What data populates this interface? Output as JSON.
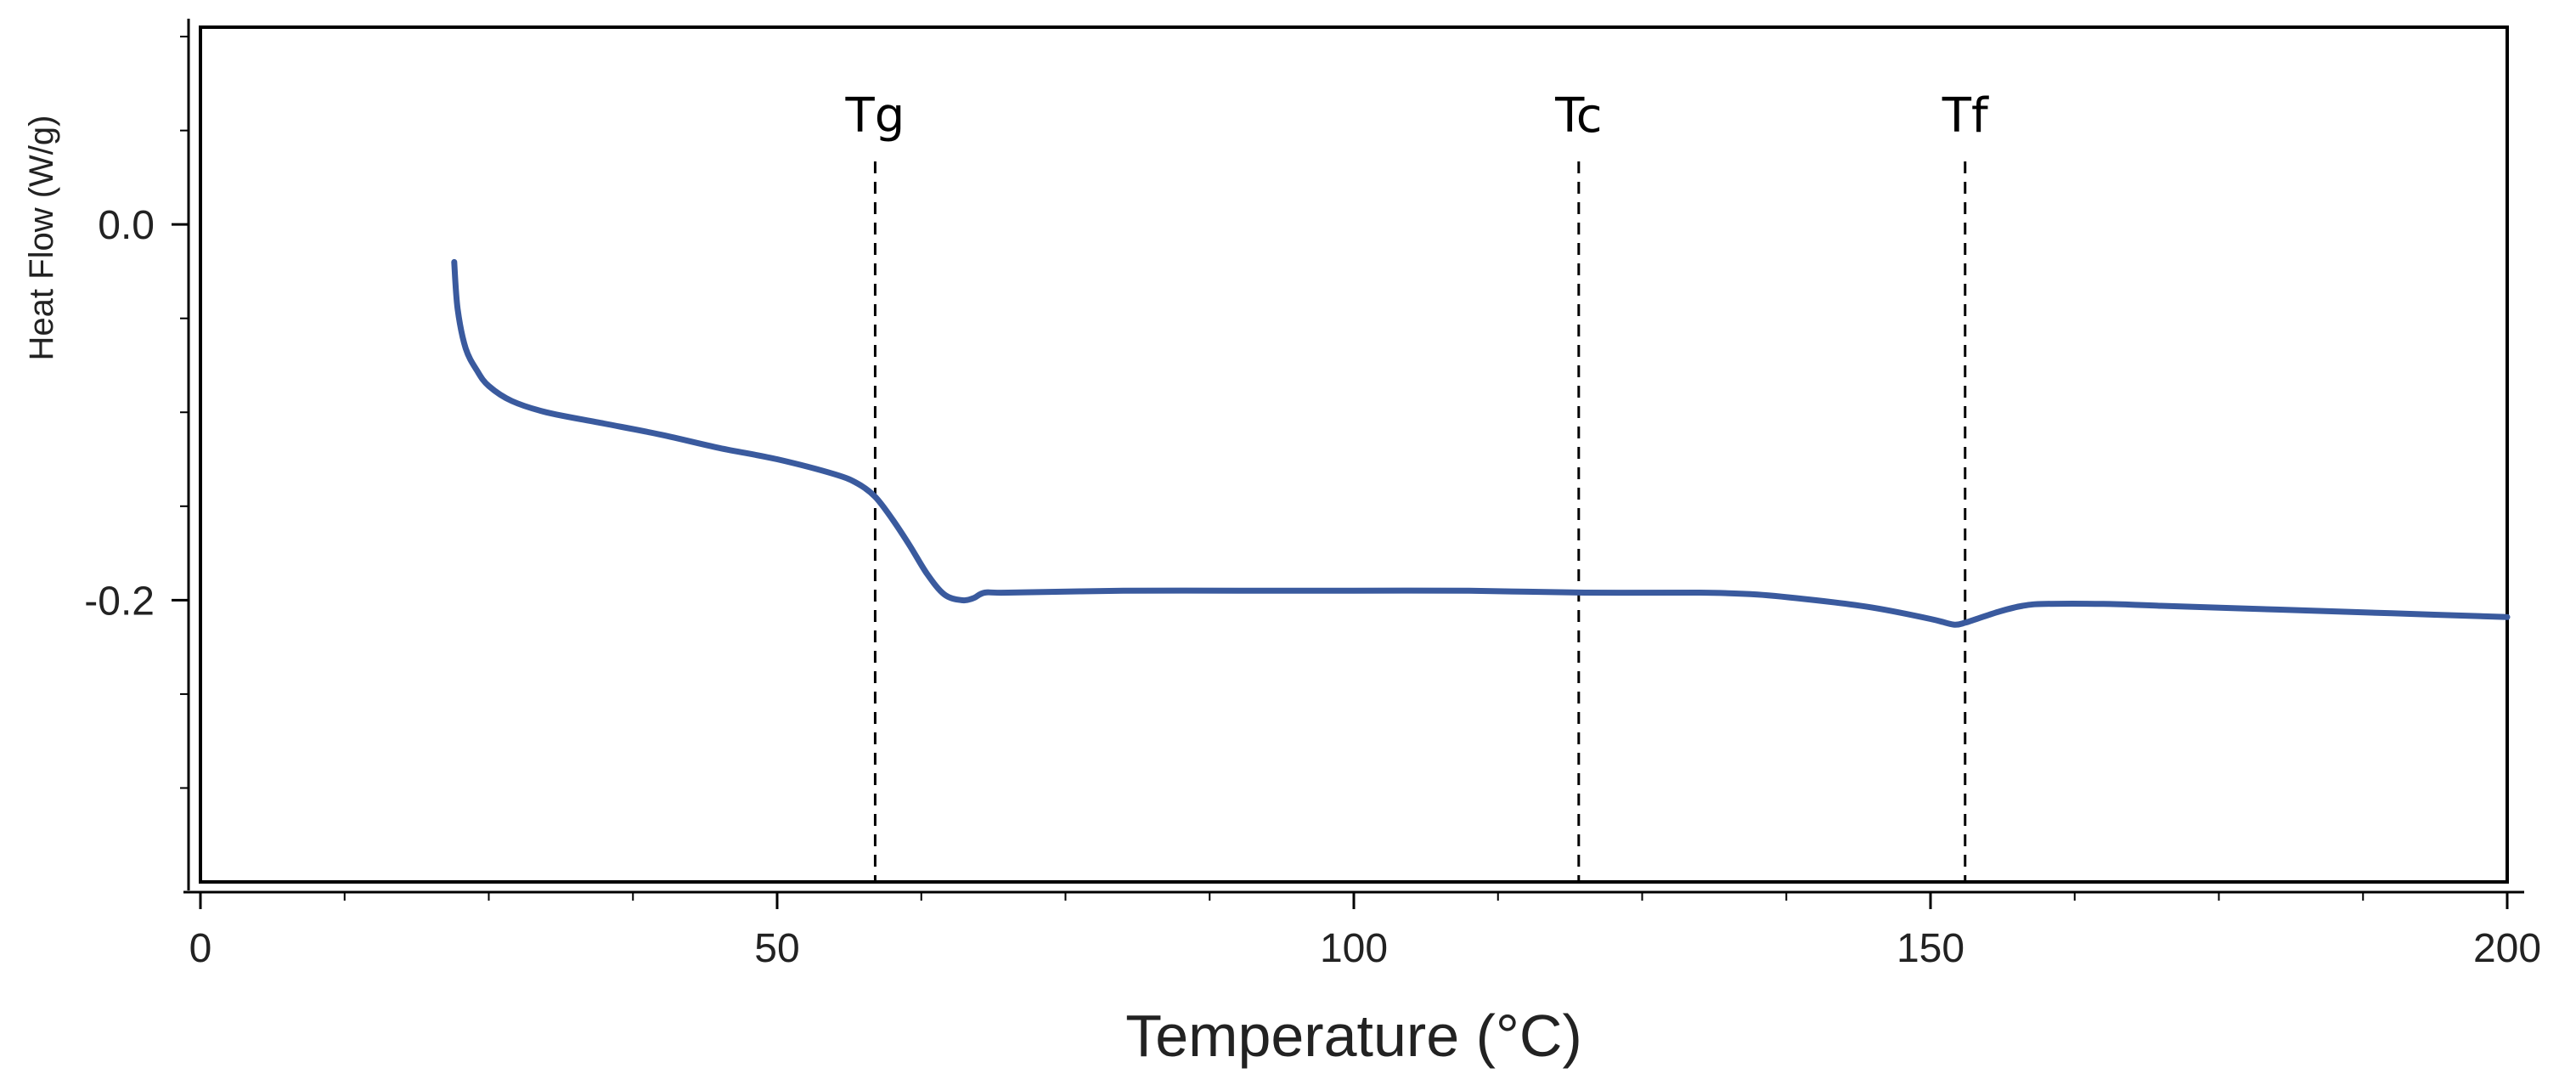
{
  "chart_data": {
    "type": "line",
    "title": "",
    "xlabel": "Temperature (°C)",
    "ylabel": "Heat Flow (W/g)",
    "xlim": [
      0,
      200
    ],
    "ylim": [
      -0.35,
      0.105
    ],
    "x_major_ticks": [
      0,
      50,
      100,
      150,
      200
    ],
    "x_tick_labels": [
      "0",
      "50",
      "100",
      "150",
      "200"
    ],
    "x_minor_step": 12.5,
    "y_major_ticks": [
      0.0,
      -0.2
    ],
    "y_tick_labels": [
      "0.0",
      "-0.2"
    ],
    "y_minor_step": 0.05,
    "grid": false,
    "series": [
      {
        "name": "Heat Flow",
        "color": "#3a5a9e",
        "x": [
          22.0,
          22.3,
          23.0,
          24.0,
          25.0,
          27.0,
          30.0,
          35.0,
          40.0,
          45.0,
          50.0,
          55.0,
          57.0,
          58.5,
          60.0,
          61.5,
          63.0,
          64.5,
          66.0,
          67.0,
          68.0,
          70.0,
          80.0,
          90.0,
          100.0,
          110.0,
          120.0,
          130.0,
          135.0,
          140.0,
          145.0,
          150.0,
          152.0,
          153.0,
          154.0,
          156.0,
          158.0,
          160.0,
          165.0,
          170.0,
          180.0,
          190.0,
          200.0
        ],
        "y": [
          -0.02,
          -0.045,
          -0.066,
          -0.078,
          -0.086,
          -0.094,
          -0.1,
          -0.106,
          -0.112,
          -0.119,
          -0.125,
          -0.133,
          -0.138,
          -0.145,
          -0.157,
          -0.171,
          -0.186,
          -0.197,
          -0.2,
          -0.199,
          -0.196,
          -0.196,
          -0.195,
          -0.195,
          -0.195,
          -0.195,
          -0.196,
          -0.196,
          -0.197,
          -0.2,
          -0.204,
          -0.21,
          -0.213,
          -0.212,
          -0.21,
          -0.206,
          -0.203,
          -0.202,
          -0.202,
          -0.203,
          -0.205,
          -0.207,
          -0.209
        ]
      }
    ],
    "vlines": [
      {
        "label": "Tg",
        "x": 58.5
      },
      {
        "label": "Tc",
        "x": 119.5
      },
      {
        "label": "Tf",
        "x": 153.0
      }
    ]
  }
}
